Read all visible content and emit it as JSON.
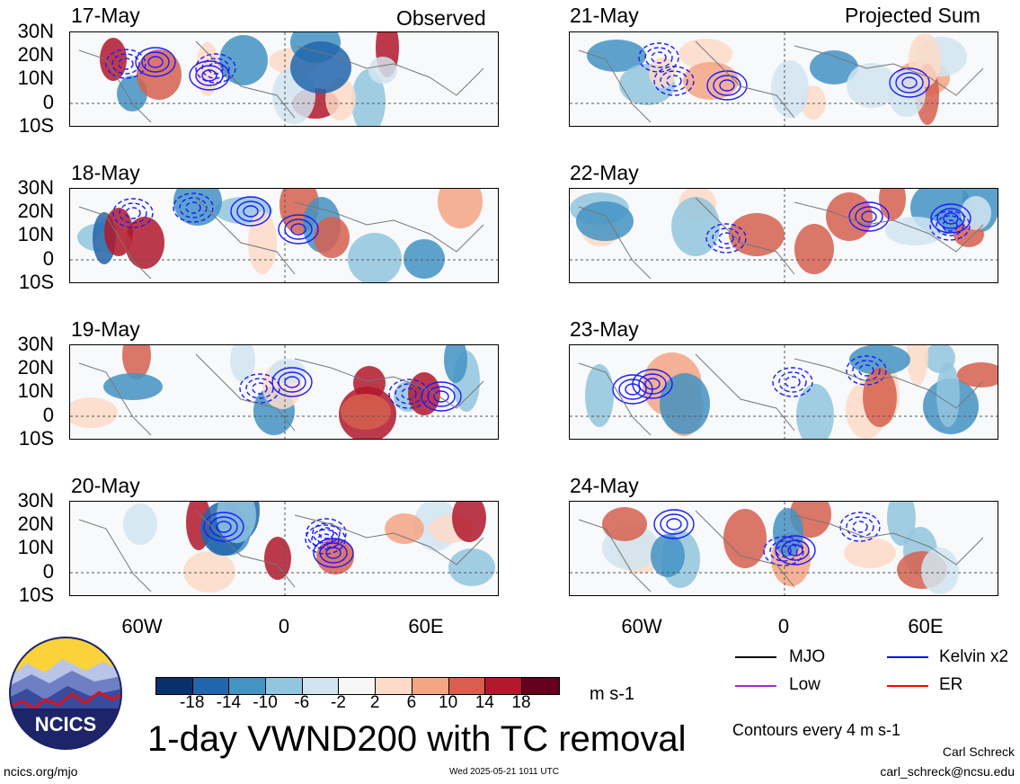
{
  "titles": {
    "observed": "Observed",
    "projected": "Projected Sum"
  },
  "left_dates": [
    "17-May",
    "18-May",
    "19-May",
    "20-May"
  ],
  "right_dates": [
    "21-May",
    "22-May",
    "23-May",
    "24-May"
  ],
  "lat_labels": [
    "30N",
    "20N",
    "10N",
    "0",
    "10S"
  ],
  "lon_labels": [
    "60W",
    "0",
    "60E"
  ],
  "colorbar": {
    "colors": [
      "#08306b",
      "#2166ac",
      "#4393c3",
      "#92c5de",
      "#d1e5f0",
      "#f7f7f7",
      "#fddbc7",
      "#f4a582",
      "#d6604d",
      "#b2182b",
      "#67001f"
    ],
    "ticks": [
      "-18",
      "-14",
      "-10",
      "-6",
      "-2",
      "2",
      "6",
      "10",
      "14",
      "18"
    ],
    "units": "m s-1"
  },
  "legend": {
    "mjo": {
      "label": "MJO",
      "color": "#000000"
    },
    "kelvin": {
      "label": "Kelvin x2",
      "color": "#0000ff"
    },
    "low": {
      "label": "Low",
      "color": "#9932cc"
    },
    "er": {
      "label": "ER",
      "color": "#ff0000"
    },
    "contours": "Contours every 4 m s-1"
  },
  "main_title": "1-day VWND200 with TC removal",
  "logo_text": "NCICS",
  "footer": {
    "url": "ncics.org/mjo",
    "timestamp": "Wed 2025-05-21 1011 UTC",
    "author": "Carl Schreck",
    "email": "carl_schreck@ncsu.edu"
  }
}
